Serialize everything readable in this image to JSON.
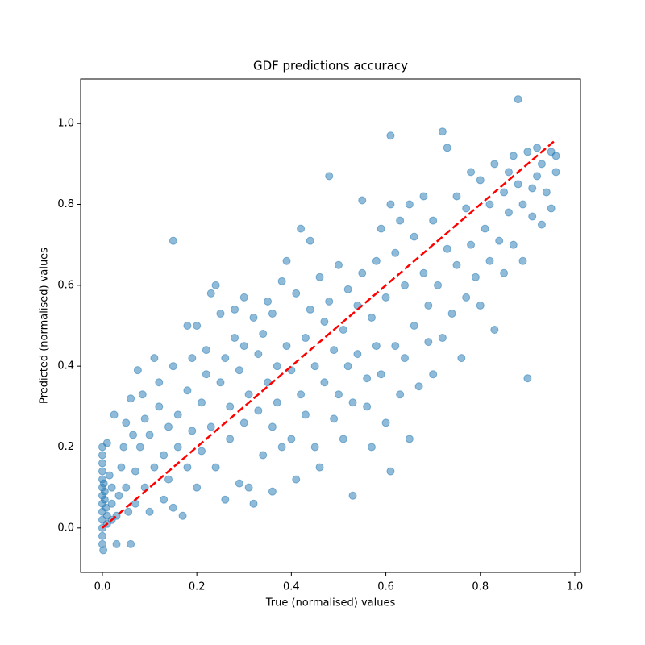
{
  "chart_data": {
    "type": "scatter",
    "title": "GDF predictions accuracy",
    "x_label": "True (normalised) values",
    "y_label": "Predicted (normalised) values",
    "xlim": [
      -0.046,
      1.012
    ],
    "ylim": [
      -0.11,
      1.11
    ],
    "xticks": [
      {
        "value": 0,
        "label": "0.0"
      },
      {
        "value": 0.2,
        "label": "0.2"
      },
      {
        "value": 0.4,
        "label": "0.4"
      },
      {
        "value": 0.6,
        "label": "0.6"
      },
      {
        "value": 0.8,
        "label": "0.8"
      },
      {
        "value": 1,
        "label": "1.0"
      }
    ],
    "yticks": [
      {
        "value": 0,
        "label": "0.0"
      },
      {
        "value": 0.2,
        "label": "0.2"
      },
      {
        "value": 0.4,
        "label": "0.4"
      },
      {
        "value": 0.6,
        "label": "0.6"
      },
      {
        "value": 0.8,
        "label": "0.8"
      },
      {
        "value": 1,
        "label": "1.0"
      }
    ],
    "series": [
      {
        "type": "scatter",
        "color": "#1f77b4",
        "x": [
          0,
          0,
          0,
          0,
          0,
          0,
          0,
          0,
          0,
          0,
          0,
          0,
          0,
          0.002,
          0.003,
          0.005,
          0.005,
          0.008,
          0.01,
          0.01,
          0.01,
          0.015,
          0.02,
          0.02,
          0.02,
          0.025,
          0.03,
          0.03,
          0.035,
          0.04,
          0.045,
          0.05,
          0.05,
          0.055,
          0.06,
          0.06,
          0.065,
          0.07,
          0.07,
          0.075,
          0.08,
          0.085,
          0.09,
          0.09,
          0.1,
          0.1,
          0.11,
          0.11,
          0.12,
          0.12,
          0.13,
          0.13,
          0.14,
          0.14,
          0.15,
          0.15,
          0.15,
          0.16,
          0.16,
          0.17,
          0.18,
          0.18,
          0.18,
          0.19,
          0.19,
          0.2,
          0.2,
          0.21,
          0.21,
          0.22,
          0.22,
          0.23,
          0.23,
          0.24,
          0.24,
          0.25,
          0.25,
          0.26,
          0.26,
          0.27,
          0.27,
          0.28,
          0.28,
          0.29,
          0.29,
          0.3,
          0.3,
          0.3,
          0.31,
          0.31,
          0.32,
          0.32,
          0.33,
          0.33,
          0.34,
          0.34,
          0.35,
          0.35,
          0.36,
          0.36,
          0.36,
          0.37,
          0.37,
          0.38,
          0.38,
          0.39,
          0.39,
          0.4,
          0.4,
          0.41,
          0.41,
          0.42,
          0.42,
          0.43,
          0.43,
          0.44,
          0.44,
          0.45,
          0.45,
          0.46,
          0.46,
          0.47,
          0.47,
          0.48,
          0.48,
          0.49,
          0.49,
          0.5,
          0.5,
          0.51,
          0.51,
          0.52,
          0.52,
          0.53,
          0.53,
          0.54,
          0.54,
          0.55,
          0.55,
          0.56,
          0.56,
          0.57,
          0.57,
          0.58,
          0.58,
          0.59,
          0.59,
          0.6,
          0.6,
          0.61,
          0.61,
          0.61,
          0.62,
          0.62,
          0.63,
          0.63,
          0.64,
          0.64,
          0.65,
          0.65,
          0.66,
          0.66,
          0.67,
          0.68,
          0.68,
          0.69,
          0.69,
          0.7,
          0.7,
          0.71,
          0.72,
          0.72,
          0.73,
          0.73,
          0.74,
          0.75,
          0.75,
          0.76,
          0.77,
          0.77,
          0.78,
          0.78,
          0.79,
          0.8,
          0.8,
          0.81,
          0.82,
          0.82,
          0.83,
          0.83,
          0.84,
          0.85,
          0.85,
          0.86,
          0.86,
          0.87,
          0.87,
          0.88,
          0.88,
          0.89,
          0.89,
          0.9,
          0.9,
          0.91,
          0.91,
          0.92,
          0.92,
          0.93,
          0.93,
          0.94,
          0.95,
          0.95,
          0.96,
          0.96
        ],
        "values": [
          0.2,
          0.18,
          0.16,
          0.14,
          0.12,
          0.1,
          0.08,
          0.06,
          0.04,
          0.02,
          0,
          -0.02,
          -0.04,
          -0.055,
          0.11,
          0.09,
          0.07,
          0.05,
          0.03,
          0.01,
          0.21,
          0.13,
          0.02,
          0.06,
          0.1,
          0.28,
          0.03,
          -0.04,
          0.08,
          0.15,
          0.2,
          0.26,
          0.1,
          0.04,
          -0.04,
          0.32,
          0.23,
          0.14,
          0.06,
          0.39,
          0.2,
          0.33,
          0.1,
          0.27,
          0.23,
          0.04,
          0.42,
          0.15,
          0.36,
          0.3,
          0.18,
          0.07,
          0.25,
          0.12,
          0.71,
          0.4,
          0.05,
          0.28,
          0.2,
          0.03,
          0.5,
          0.34,
          0.15,
          0.42,
          0.24,
          0.5,
          0.1,
          0.31,
          0.19,
          0.44,
          0.38,
          0.58,
          0.25,
          0.6,
          0.15,
          0.53,
          0.36,
          0.42,
          0.07,
          0.3,
          0.22,
          0.47,
          0.54,
          0.39,
          0.11,
          0.57,
          0.45,
          0.26,
          0.33,
          0.1,
          0.52,
          0.06,
          0.43,
          0.29,
          0.48,
          0.18,
          0.36,
          0.56,
          0.53,
          0.25,
          0.09,
          0.31,
          0.4,
          0.61,
          0.2,
          0.45,
          0.66,
          0.22,
          0.39,
          0.12,
          0.58,
          0.74,
          0.33,
          0.47,
          0.28,
          0.71,
          0.54,
          0.2,
          0.4,
          0.62,
          0.15,
          0.36,
          0.51,
          0.87,
          0.56,
          0.27,
          0.44,
          0.65,
          0.33,
          0.49,
          0.22,
          0.4,
          0.59,
          0.08,
          0.31,
          0.55,
          0.43,
          0.81,
          0.63,
          0.37,
          0.3,
          0.52,
          0.2,
          0.66,
          0.45,
          0.74,
          0.38,
          0.57,
          0.26,
          0.97,
          0.14,
          0.8,
          0.45,
          0.68,
          0.76,
          0.33,
          0.6,
          0.42,
          0.8,
          0.22,
          0.72,
          0.5,
          0.35,
          0.82,
          0.63,
          0.55,
          0.46,
          0.76,
          0.38,
          0.6,
          0.98,
          0.47,
          0.94,
          0.69,
          0.53,
          0.82,
          0.65,
          0.42,
          0.79,
          0.57,
          0.88,
          0.7,
          0.62,
          0.86,
          0.55,
          0.74,
          0.8,
          0.66,
          0.9,
          0.49,
          0.71,
          0.83,
          0.63,
          0.88,
          0.78,
          0.92,
          0.7,
          1.06,
          0.85,
          0.8,
          0.66,
          0.93,
          0.37,
          0.84,
          0.77,
          0.94,
          0.87,
          0.9,
          0.75,
          0.83,
          0.93,
          0.79,
          0.92,
          0.88
        ]
      },
      {
        "type": "line",
        "color": "#ff0000",
        "dashed": true,
        "x": [
          0,
          0.96
        ],
        "values": [
          0,
          0.96
        ]
      }
    ]
  }
}
